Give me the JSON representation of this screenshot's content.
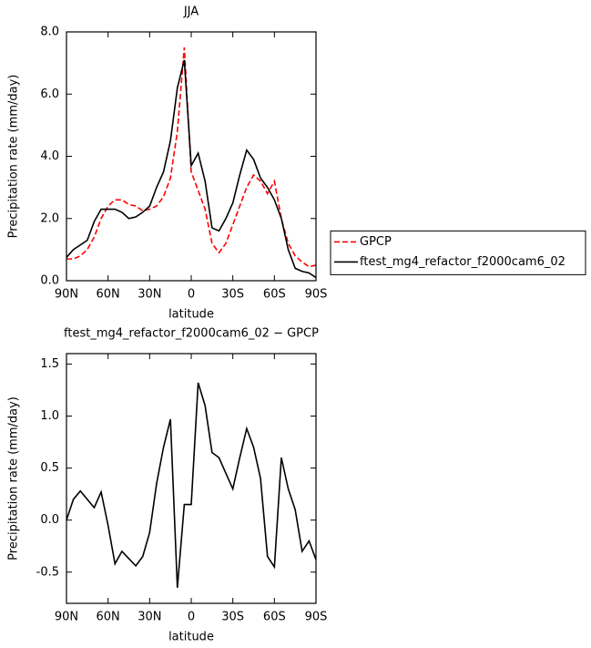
{
  "chart_data": [
    {
      "type": "line",
      "title": "JJA",
      "xlabel": "latitude",
      "ylabel": "Precipitation rate (mm/day)",
      "x": [
        90,
        85,
        80,
        75,
        70,
        65,
        60,
        55,
        50,
        45,
        40,
        35,
        30,
        25,
        20,
        15,
        10,
        5,
        0,
        -5,
        -10,
        -15,
        -20,
        -25,
        -30,
        -35,
        -40,
        -45,
        -50,
        -55,
        -60,
        -65,
        -70,
        -75,
        -80,
        -85,
        -90
      ],
      "series": [
        {
          "name": "GPCP",
          "color": "#ff0000",
          "linestyle": "dashed",
          "values": [
            0.7,
            0.7,
            0.8,
            1.0,
            1.4,
            2.0,
            2.4,
            2.6,
            2.6,
            2.45,
            2.4,
            2.25,
            2.3,
            2.4,
            2.7,
            3.3,
            4.8,
            7.5,
            3.5,
            2.9,
            2.3,
            1.2,
            0.9,
            1.2,
            1.8,
            2.4,
            3.0,
            3.4,
            3.2,
            2.8,
            3.2,
            2.0,
            1.2,
            0.8,
            0.6,
            0.45,
            0.5
          ]
        },
        {
          "name": "ftest_mg4_refactor_f2000cam6_02",
          "color": "#000000",
          "linestyle": "solid",
          "values": [
            0.75,
            1.0,
            1.15,
            1.3,
            1.9,
            2.3,
            2.3,
            2.3,
            2.2,
            2.0,
            2.05,
            2.2,
            2.4,
            3.0,
            3.5,
            4.5,
            6.2,
            7.1,
            3.7,
            4.1,
            3.2,
            1.7,
            1.6,
            2.0,
            2.5,
            3.4,
            4.2,
            3.9,
            3.3,
            3.0,
            2.6,
            2.0,
            1.0,
            0.4,
            0.3,
            0.25,
            0.1
          ]
        }
      ],
      "xlim": [
        90,
        -90
      ],
      "xticks": [
        {
          "value": 90,
          "label": "90N"
        },
        {
          "value": 60,
          "label": "60N"
        },
        {
          "value": 30,
          "label": "30N"
        },
        0,
        {
          "value": -30,
          "label": "30S"
        },
        {
          "value": -60,
          "label": "60S"
        },
        {
          "value": -90,
          "label": "90S"
        }
      ],
      "ylim": [
        0,
        8
      ],
      "yticks": [
        {
          "value": 0,
          "label": "0.0"
        },
        {
          "value": 2,
          "label": "2.0"
        },
        {
          "value": 4,
          "label": "4.0"
        },
        {
          "value": 6,
          "label": "6.0"
        },
        {
          "value": 8,
          "label": "8.0"
        }
      ],
      "legend": "right"
    },
    {
      "type": "line",
      "title": "ftest_mg4_refactor_f2000cam6_02 − GPCP",
      "xlabel": "latitude",
      "ylabel": "Precipitation rate (mm/day)",
      "x": [
        90,
        85,
        80,
        75,
        70,
        65,
        60,
        55,
        50,
        45,
        40,
        35,
        30,
        25,
        20,
        15,
        10,
        5,
        0,
        -5,
        -10,
        -15,
        -20,
        -25,
        -30,
        -35,
        -40,
        -45,
        -50,
        -55,
        -60,
        -65,
        -70,
        -75,
        -80,
        -85,
        -90
      ],
      "values": [
        0.0,
        0.2,
        0.28,
        0.2,
        0.12,
        0.27,
        -0.05,
        -0.42,
        -0.3,
        -0.37,
        -0.44,
        -0.35,
        -0.12,
        0.35,
        0.7,
        0.97,
        -0.65,
        0.15,
        0.15,
        1.32,
        1.1,
        0.65,
        0.6,
        0.45,
        0.3,
        0.6,
        0.88,
        0.7,
        0.4,
        -0.35,
        -0.45,
        0.6,
        0.3,
        0.1,
        -0.3,
        -0.2,
        -0.38
      ],
      "color": "#000000",
      "xlim": [
        90,
        -90
      ],
      "xticks": [
        {
          "value": 90,
          "label": "90N"
        },
        {
          "value": 60,
          "label": "60N"
        },
        {
          "value": 30,
          "label": "30N"
        },
        0,
        {
          "value": -30,
          "label": "30S"
        },
        {
          "value": -60,
          "label": "60S"
        },
        {
          "value": -90,
          "label": "90S"
        }
      ],
      "ylim": [
        -0.8,
        1.6
      ],
      "yticks": [
        -0.5,
        {
          "value": 0,
          "label": "0.0"
        },
        0.5,
        {
          "value": 1,
          "label": "1.0"
        },
        1.5
      ]
    }
  ]
}
